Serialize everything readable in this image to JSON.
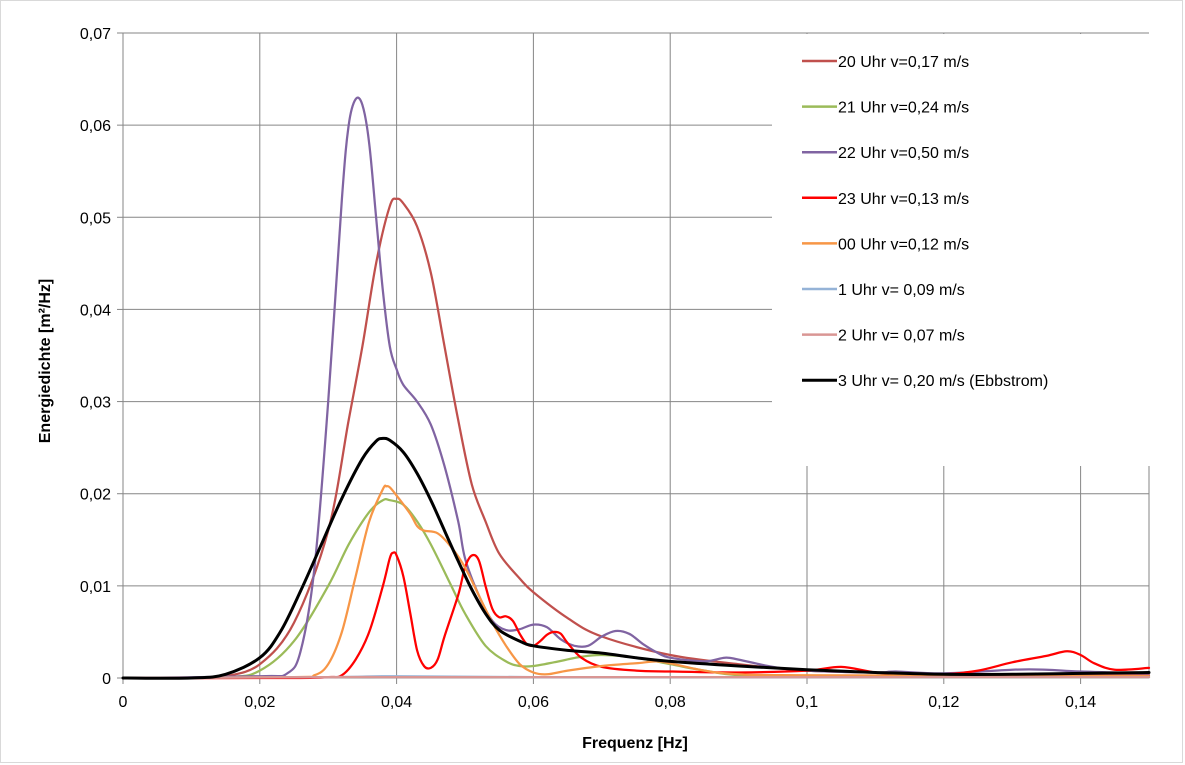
{
  "chart_data": {
    "type": "line",
    "title": "",
    "xlabel": "Frequenz  [Hz]",
    "ylabel": "Energiedichte [m²/Hz]",
    "xlim": [
      0,
      0.15
    ],
    "ylim": [
      0,
      0.07
    ],
    "x_ticks": [
      0,
      0.02,
      0.04,
      0.06,
      0.08,
      0.1,
      0.12,
      0.14
    ],
    "x_tick_labels": [
      "0",
      "0,02",
      "0,04",
      "0,06",
      "0,08",
      "0,1",
      "0,12",
      "0,14"
    ],
    "y_ticks": [
      0,
      0.01,
      0.02,
      0.03,
      0.04,
      0.05,
      0.06,
      0.07
    ],
    "y_tick_labels": [
      "0",
      "0,01",
      "0,02",
      "0,03",
      "0,04",
      "0,05",
      "0,06",
      "0,07"
    ],
    "grid": true,
    "legend_position": "top-right inside plot",
    "series": [
      {
        "name": "20 Uhr v=0,17 m/s",
        "color": "#c0504d",
        "points": [
          [
            0,
            0
          ],
          [
            0.01,
            0
          ],
          [
            0.015,
            0.0002
          ],
          [
            0.02,
            0.0015
          ],
          [
            0.025,
            0.006
          ],
          [
            0.03,
            0.016
          ],
          [
            0.033,
            0.028
          ],
          [
            0.035,
            0.036
          ],
          [
            0.037,
            0.045
          ],
          [
            0.039,
            0.0512
          ],
          [
            0.04,
            0.052
          ],
          [
            0.041,
            0.0515
          ],
          [
            0.043,
            0.049
          ],
          [
            0.045,
            0.044
          ],
          [
            0.047,
            0.036
          ],
          [
            0.049,
            0.028
          ],
          [
            0.051,
            0.021
          ],
          [
            0.053,
            0.017
          ],
          [
            0.055,
            0.0135
          ],
          [
            0.058,
            0.0108
          ],
          [
            0.06,
            0.0093
          ],
          [
            0.065,
            0.0065
          ],
          [
            0.07,
            0.0045
          ],
          [
            0.08,
            0.0025
          ],
          [
            0.09,
            0.0015
          ],
          [
            0.1,
            0.0008
          ],
          [
            0.11,
            0.0006
          ],
          [
            0.12,
            0.0004
          ],
          [
            0.13,
            0.0003
          ],
          [
            0.14,
            0.0003
          ],
          [
            0.15,
            0.0003
          ]
        ]
      },
      {
        "name": "21 Uhr v=0,24 m/s",
        "color": "#9bbb59",
        "points": [
          [
            0,
            0
          ],
          [
            0.015,
            0.0001
          ],
          [
            0.02,
            0.0008
          ],
          [
            0.025,
            0.004
          ],
          [
            0.03,
            0.01
          ],
          [
            0.033,
            0.0145
          ],
          [
            0.036,
            0.018
          ],
          [
            0.038,
            0.0193
          ],
          [
            0.039,
            0.0193
          ],
          [
            0.041,
            0.0188
          ],
          [
            0.043,
            0.017
          ],
          [
            0.045,
            0.0145
          ],
          [
            0.048,
            0.01
          ],
          [
            0.05,
            0.007
          ],
          [
            0.053,
            0.0035
          ],
          [
            0.056,
            0.0018
          ],
          [
            0.058,
            0.0013
          ],
          [
            0.06,
            0.0013
          ],
          [
            0.063,
            0.0017
          ],
          [
            0.067,
            0.0023
          ],
          [
            0.07,
            0.0025
          ],
          [
            0.075,
            0.0022
          ],
          [
            0.08,
            0.0015
          ],
          [
            0.085,
            0.0008
          ],
          [
            0.09,
            0.0003
          ],
          [
            0.1,
            0.0002
          ],
          [
            0.12,
            0.0001
          ],
          [
            0.15,
            0.0001
          ]
        ]
      },
      {
        "name": "22 Uhr v=0,50 m/s",
        "color": "#8064a2",
        "points": [
          [
            0,
            0
          ],
          [
            0.02,
            0.0002
          ],
          [
            0.024,
            0.0005
          ],
          [
            0.026,
            0.003
          ],
          [
            0.028,
            0.012
          ],
          [
            0.03,
            0.03
          ],
          [
            0.032,
            0.052
          ],
          [
            0.033,
            0.06
          ],
          [
            0.034,
            0.0628
          ],
          [
            0.035,
            0.0622
          ],
          [
            0.036,
            0.058
          ],
          [
            0.037,
            0.05
          ],
          [
            0.038,
            0.042
          ],
          [
            0.039,
            0.036
          ],
          [
            0.04,
            0.0335
          ],
          [
            0.041,
            0.0318
          ],
          [
            0.043,
            0.03
          ],
          [
            0.045,
            0.0275
          ],
          [
            0.047,
            0.023
          ],
          [
            0.049,
            0.017
          ],
          [
            0.05,
            0.013
          ],
          [
            0.052,
            0.009
          ],
          [
            0.054,
            0.0062
          ],
          [
            0.056,
            0.0052
          ],
          [
            0.058,
            0.0053
          ],
          [
            0.06,
            0.0058
          ],
          [
            0.062,
            0.0055
          ],
          [
            0.064,
            0.0042
          ],
          [
            0.066,
            0.0035
          ],
          [
            0.068,
            0.0035
          ],
          [
            0.07,
            0.0045
          ],
          [
            0.072,
            0.0051
          ],
          [
            0.074,
            0.0048
          ],
          [
            0.076,
            0.0037
          ],
          [
            0.078,
            0.0028
          ],
          [
            0.08,
            0.0022
          ],
          [
            0.085,
            0.0018
          ],
          [
            0.088,
            0.0022
          ],
          [
            0.09,
            0.002
          ],
          [
            0.095,
            0.0012
          ],
          [
            0.1,
            0.0008
          ],
          [
            0.11,
            0.0006
          ],
          [
            0.113,
            0.0007
          ],
          [
            0.12,
            0.0005
          ],
          [
            0.13,
            0.0009
          ],
          [
            0.135,
            0.0009
          ],
          [
            0.14,
            0.0007
          ],
          [
            0.15,
            0.0005
          ]
        ]
      },
      {
        "name": "23 Uhr v=0,13 m/s",
        "color": "#ff0000",
        "points": [
          [
            0,
            0
          ],
          [
            0.025,
            0
          ],
          [
            0.03,
            0.0001
          ],
          [
            0.032,
            0.0003
          ],
          [
            0.034,
            0.002
          ],
          [
            0.036,
            0.005
          ],
          [
            0.038,
            0.01
          ],
          [
            0.039,
            0.013
          ],
          [
            0.0395,
            0.0136
          ],
          [
            0.04,
            0.0133
          ],
          [
            0.041,
            0.011
          ],
          [
            0.042,
            0.007
          ],
          [
            0.043,
            0.003
          ],
          [
            0.044,
            0.0013
          ],
          [
            0.045,
            0.0011
          ],
          [
            0.046,
            0.002
          ],
          [
            0.047,
            0.0045
          ],
          [
            0.049,
            0.009
          ],
          [
            0.05,
            0.012
          ],
          [
            0.051,
            0.0133
          ],
          [
            0.052,
            0.0128
          ],
          [
            0.053,
            0.01
          ],
          [
            0.054,
            0.0075
          ],
          [
            0.055,
            0.0066
          ],
          [
            0.056,
            0.0067
          ],
          [
            0.057,
            0.0062
          ],
          [
            0.058,
            0.0048
          ],
          [
            0.059,
            0.0037
          ],
          [
            0.06,
            0.0035
          ],
          [
            0.061,
            0.004
          ],
          [
            0.062,
            0.0047
          ],
          [
            0.063,
            0.005
          ],
          [
            0.064,
            0.0048
          ],
          [
            0.065,
            0.0038
          ],
          [
            0.067,
            0.0022
          ],
          [
            0.07,
            0.0012
          ],
          [
            0.075,
            0.0008
          ],
          [
            0.08,
            0.0007
          ],
          [
            0.09,
            0.0006
          ],
          [
            0.1,
            0.0008
          ],
          [
            0.105,
            0.0012
          ],
          [
            0.11,
            0.0006
          ],
          [
            0.115,
            0.0004
          ],
          [
            0.12,
            0.0004
          ],
          [
            0.125,
            0.0008
          ],
          [
            0.13,
            0.0017
          ],
          [
            0.135,
            0.0024
          ],
          [
            0.138,
            0.0029
          ],
          [
            0.14,
            0.0025
          ],
          [
            0.142,
            0.0016
          ],
          [
            0.145,
            0.0009
          ],
          [
            0.15,
            0.0011
          ]
        ]
      },
      {
        "name": "00 Uhr v=0,12 m/s",
        "color": "#f79646",
        "points": [
          [
            0,
            0
          ],
          [
            0.025,
            0.0001
          ],
          [
            0.028,
            0.0003
          ],
          [
            0.03,
            0.0015
          ],
          [
            0.032,
            0.005
          ],
          [
            0.034,
            0.011
          ],
          [
            0.036,
            0.017
          ],
          [
            0.038,
            0.0205
          ],
          [
            0.0385,
            0.0208
          ],
          [
            0.039,
            0.0207
          ],
          [
            0.04,
            0.0198
          ],
          [
            0.042,
            0.0178
          ],
          [
            0.043,
            0.0165
          ],
          [
            0.044,
            0.016
          ],
          [
            0.046,
            0.0157
          ],
          [
            0.048,
            0.0142
          ],
          [
            0.05,
            0.012
          ],
          [
            0.052,
            0.009
          ],
          [
            0.054,
            0.006
          ],
          [
            0.056,
            0.0035
          ],
          [
            0.058,
            0.0015
          ],
          [
            0.06,
            0.0006
          ],
          [
            0.062,
            0.0004
          ],
          [
            0.065,
            0.0008
          ],
          [
            0.07,
            0.0013
          ],
          [
            0.075,
            0.0016
          ],
          [
            0.078,
            0.0018
          ],
          [
            0.08,
            0.0016
          ],
          [
            0.085,
            0.0008
          ],
          [
            0.09,
            0.0004
          ],
          [
            0.1,
            0.0003
          ],
          [
            0.15,
            0.0002
          ]
        ]
      },
      {
        "name": "1 Uhr v= 0,09 m/s",
        "color": "#95b3d7",
        "points": [
          [
            0,
            0
          ],
          [
            0.03,
            0.0001
          ],
          [
            0.04,
            0.0002
          ],
          [
            0.06,
            0.0001
          ],
          [
            0.1,
            0.0001
          ],
          [
            0.15,
            0.0001
          ]
        ]
      },
      {
        "name": "2 Uhr v= 0,07 m/s",
        "color": "#d99694",
        "points": [
          [
            0,
            0
          ],
          [
            0.03,
            0.0001
          ],
          [
            0.04,
            0.0001
          ],
          [
            0.06,
            0.0001
          ],
          [
            0.1,
            0.0001
          ],
          [
            0.15,
            0.0001
          ]
        ]
      },
      {
        "name": "3 Uhr v= 0,20 m/s (Ebbstrom)",
        "color": "#000000",
        "points": [
          [
            0,
            0
          ],
          [
            0.01,
            0
          ],
          [
            0.015,
            0.0004
          ],
          [
            0.02,
            0.0022
          ],
          [
            0.023,
            0.005
          ],
          [
            0.026,
            0.0095
          ],
          [
            0.029,
            0.0145
          ],
          [
            0.032,
            0.0195
          ],
          [
            0.035,
            0.0238
          ],
          [
            0.037,
            0.0257
          ],
          [
            0.038,
            0.026
          ],
          [
            0.039,
            0.0258
          ],
          [
            0.041,
            0.0245
          ],
          [
            0.043,
            0.0222
          ],
          [
            0.045,
            0.0193
          ],
          [
            0.047,
            0.016
          ],
          [
            0.049,
            0.0127
          ],
          [
            0.051,
            0.0096
          ],
          [
            0.053,
            0.007
          ],
          [
            0.055,
            0.0052
          ],
          [
            0.058,
            0.004
          ],
          [
            0.06,
            0.0035
          ],
          [
            0.065,
            0.003
          ],
          [
            0.07,
            0.0027
          ],
          [
            0.075,
            0.0022
          ],
          [
            0.08,
            0.0018
          ],
          [
            0.09,
            0.0013
          ],
          [
            0.1,
            0.0009
          ],
          [
            0.11,
            0.0006
          ],
          [
            0.12,
            0.0004
          ],
          [
            0.13,
            0.0004
          ],
          [
            0.14,
            0.0005
          ],
          [
            0.15,
            0.0006
          ]
        ]
      }
    ]
  }
}
